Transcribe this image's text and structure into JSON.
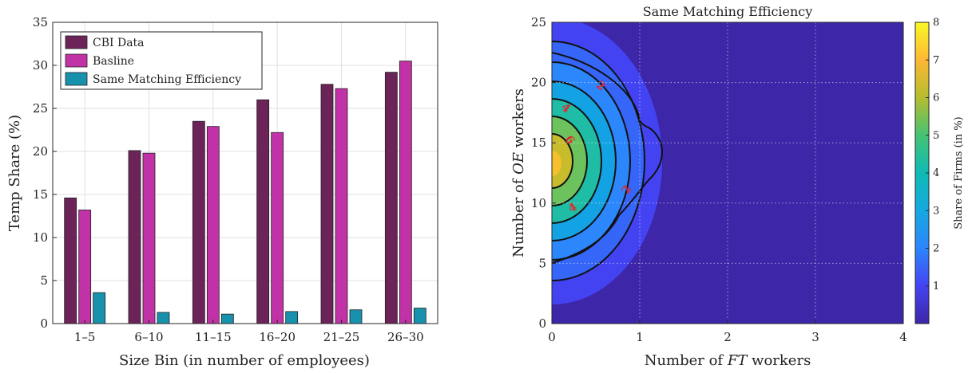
{
  "chart_data": [
    {
      "type": "bar",
      "title": "",
      "xlabel": "Size Bin (in number of employees)",
      "ylabel": "Temp Share (%)",
      "ylim": [
        0,
        35
      ],
      "yticks": [
        "0",
        "5",
        "10",
        "15",
        "20",
        "25",
        "30",
        "35"
      ],
      "categories": [
        "1–5",
        "6–10",
        "11–15",
        "16–20",
        "21–25",
        "26–30"
      ],
      "series": [
        {
          "name": "CBI Data",
          "color": "#6b2358",
          "values": [
            14.6,
            20.1,
            23.5,
            26.0,
            27.8,
            29.2
          ]
        },
        {
          "name": "Basline",
          "color": "#c132a6",
          "values": [
            13.2,
            19.8,
            22.9,
            22.2,
            27.3,
            30.5
          ]
        },
        {
          "name": "Same Matching Efficiency",
          "color": "#1891ad",
          "values": [
            3.6,
            1.3,
            1.1,
            1.4,
            1.6,
            1.8
          ]
        }
      ],
      "grid": true,
      "legend_position": "top-left"
    },
    {
      "type": "heatmap",
      "title": "Same Matching Efficiency",
      "xlabel": "Number of FT workers",
      "ylabel": "Number of OE workers",
      "xlim": [
        0,
        4
      ],
      "ylim": [
        0,
        25
      ],
      "xticks": [
        "0",
        "1",
        "2",
        "3",
        "4"
      ],
      "yticks": [
        "0",
        "5",
        "10",
        "15",
        "20",
        "25"
      ],
      "peak": {
        "x": 0,
        "y": 13.5,
        "value": 8
      },
      "contour_levels": [
        1,
        2,
        3,
        4,
        5,
        6,
        7
      ],
      "contour_labels": [
        "2",
        "4",
        "6",
        "2",
        "4"
      ],
      "colorbar": {
        "label": "Share of Firms (in %)",
        "ticks": [
          "1",
          "2",
          "3",
          "4",
          "5",
          "6",
          "7",
          "8"
        ],
        "range": [
          0,
          8
        ]
      },
      "grid": true
    }
  ]
}
